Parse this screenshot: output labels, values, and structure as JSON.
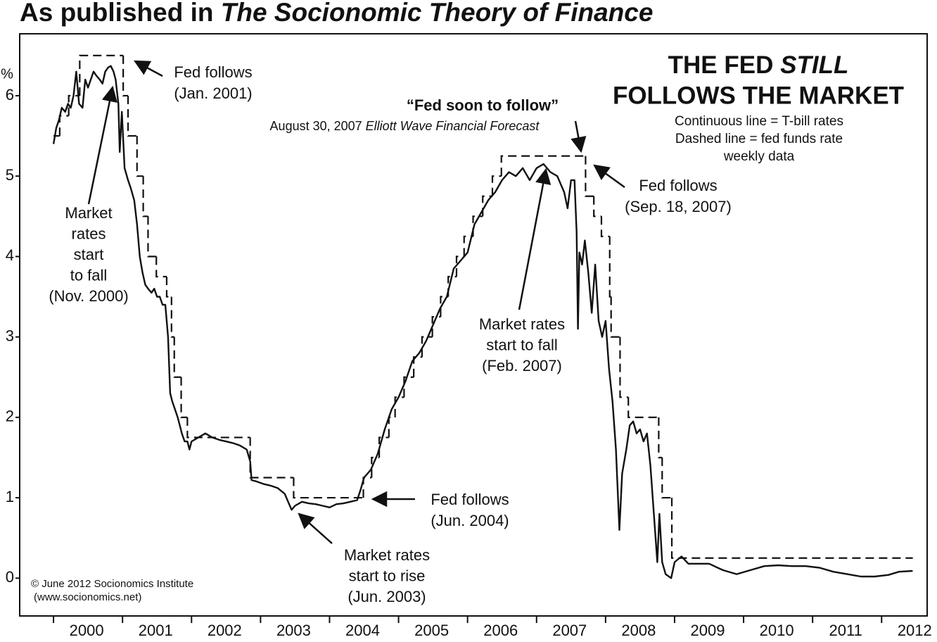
{
  "chart_data": {
    "type": "line",
    "title": [
      "As published in",
      "The Socionomic Theory of Finance"
    ],
    "heading": [
      "THE FED",
      "STILL",
      "FOLLOWS THE MARKET"
    ],
    "notes": [
      "Continuous line = T-bill rates",
      "Dashed line = fed funds rate",
      "weekly data"
    ],
    "y_label": "%",
    "xlim": [
      1999.51,
      2012.66
    ],
    "ylim": [
      -0.47,
      6.77
    ],
    "yticks": [
      0,
      1,
      2,
      3,
      4,
      5,
      6
    ],
    "xticks": [
      2000,
      2001,
      2002,
      2003,
      2004,
      2005,
      2006,
      2007,
      2008,
      2009,
      2010,
      2011,
      2012
    ],
    "series": [
      {
        "style": "solid",
        "color": "#111111",
        "x": [
          2000.0,
          2000.04,
          2000.08,
          2000.12,
          2000.17,
          2000.21,
          2000.25,
          2000.29,
          2000.33,
          2000.37,
          2000.42,
          2000.46,
          2000.5,
          2000.54,
          2000.58,
          2000.62,
          2000.67,
          2000.71,
          2000.75,
          2000.79,
          2000.83,
          2000.87,
          2000.9,
          2000.94,
          2000.96,
          2000.99,
          2001.03,
          2001.08,
          2001.12,
          2001.17,
          2001.21,
          2001.25,
          2001.29,
          2001.33,
          2001.37,
          2001.42,
          2001.46,
          2001.5,
          2001.54,
          2001.58,
          2001.62,
          2001.66,
          2001.69,
          2001.72,
          2001.76,
          2001.8,
          2001.83,
          2001.86,
          2001.9,
          2001.94,
          2001.97,
          2002.0,
          2002.1,
          2002.2,
          2002.3,
          2002.4,
          2002.5,
          2002.6,
          2002.7,
          2002.8,
          2002.85,
          2002.87,
          2002.95,
          2003.05,
          2003.15,
          2003.25,
          2003.35,
          2003.4,
          2003.45,
          2003.5,
          2003.6,
          2003.7,
          2003.8,
          2003.9,
          2004.0,
          2004.1,
          2004.2,
          2004.3,
          2004.4,
          2004.45,
          2004.5,
          2004.6,
          2004.7,
          2004.8,
          2004.9,
          2005.0,
          2005.1,
          2005.2,
          2005.3,
          2005.4,
          2005.5,
          2005.6,
          2005.7,
          2005.8,
          2005.9,
          2006.0,
          2006.1,
          2006.2,
          2006.3,
          2006.4,
          2006.5,
          2006.6,
          2006.7,
          2006.8,
          2006.9,
          2007.0,
          2007.1,
          2007.2,
          2007.3,
          2007.4,
          2007.45,
          2007.5,
          2007.55,
          2007.58,
          2007.6,
          2007.62,
          2007.66,
          2007.7,
          2007.75,
          2007.8,
          2007.85,
          2007.9,
          2007.95,
          2008.0,
          2008.05,
          2008.1,
          2008.15,
          2008.2,
          2008.24,
          2008.3,
          2008.35,
          2008.4,
          2008.45,
          2008.5,
          2008.55,
          2008.6,
          2008.65,
          2008.7,
          2008.75,
          2008.78,
          2008.82,
          2008.87,
          2008.95,
          2009.0,
          2009.1,
          2009.2,
          2009.3,
          2009.5,
          2009.7,
          2009.9,
          2010.1,
          2010.3,
          2010.5,
          2010.7,
          2010.9,
          2011.1,
          2011.3,
          2011.5,
          2011.7,
          2011.9,
          2012.1,
          2012.25,
          2012.45
        ],
        "values": [
          5.4,
          5.6,
          5.7,
          5.85,
          5.8,
          5.9,
          5.85,
          6.0,
          6.3,
          5.9,
          5.85,
          6.2,
          6.1,
          6.2,
          6.3,
          6.25,
          6.2,
          6.15,
          6.3,
          6.35,
          6.37,
          6.3,
          6.2,
          5.9,
          5.3,
          5.8,
          5.1,
          4.95,
          4.85,
          4.7,
          4.4,
          4.0,
          3.8,
          3.65,
          3.6,
          3.55,
          3.6,
          3.5,
          3.5,
          3.4,
          3.4,
          3.0,
          2.3,
          2.2,
          2.1,
          2.0,
          1.9,
          1.8,
          1.7,
          1.7,
          1.6,
          1.7,
          1.75,
          1.8,
          1.75,
          1.72,
          1.7,
          1.68,
          1.65,
          1.6,
          1.45,
          1.22,
          1.2,
          1.17,
          1.15,
          1.12,
          1.05,
          0.95,
          0.85,
          0.9,
          0.95,
          0.93,
          0.92,
          0.9,
          0.88,
          0.92,
          0.93,
          0.95,
          0.97,
          1.1,
          1.25,
          1.35,
          1.55,
          1.85,
          2.1,
          2.25,
          2.45,
          2.7,
          2.8,
          2.95,
          3.15,
          3.35,
          3.5,
          3.85,
          3.95,
          4.05,
          4.4,
          4.55,
          4.7,
          4.8,
          4.95,
          5.05,
          5.0,
          5.1,
          4.95,
          5.1,
          5.15,
          5.05,
          5.0,
          4.8,
          4.6,
          4.95,
          4.95,
          4.3,
          3.1,
          4.05,
          3.9,
          4.2,
          3.8,
          3.3,
          3.9,
          3.2,
          3.0,
          3.2,
          2.6,
          2.2,
          1.6,
          0.6,
          1.3,
          1.6,
          1.9,
          1.95,
          1.8,
          1.85,
          1.7,
          1.8,
          1.4,
          0.8,
          0.2,
          0.8,
          0.2,
          0.05,
          0.0,
          0.2,
          0.27,
          0.18,
          0.18,
          0.18,
          0.1,
          0.05,
          0.1,
          0.15,
          0.16,
          0.15,
          0.15,
          0.13,
          0.08,
          0.05,
          0.02,
          0.02,
          0.04,
          0.08,
          0.09
        ]
      },
      {
        "style": "dashed",
        "drawstyle": "steps-post",
        "color": "#111111",
        "x": [
          2000.0,
          2000.09,
          2000.22,
          2000.38,
          2001.01,
          2001.08,
          2001.21,
          2001.3,
          2001.37,
          2001.49,
          2001.64,
          2001.71,
          2001.75,
          2001.85,
          2001.94,
          2002.85,
          2003.48,
          2004.49,
          2004.61,
          2004.72,
          2004.86,
          2004.95,
          2005.08,
          2005.22,
          2005.34,
          2005.49,
          2005.61,
          2005.72,
          2005.84,
          2005.95,
          2006.08,
          2006.22,
          2006.36,
          2006.49,
          2007.71,
          2007.83,
          2007.94,
          2008.06,
          2008.08,
          2008.21,
          2008.33,
          2008.77,
          2008.82,
          2008.96,
          2012.45
        ],
        "values": [
          5.5,
          5.75,
          6.0,
          6.5,
          6.0,
          5.5,
          5.0,
          4.5,
          4.0,
          3.75,
          3.5,
          3.0,
          2.5,
          2.0,
          1.75,
          1.25,
          1.0,
          1.25,
          1.5,
          1.75,
          2.0,
          2.25,
          2.5,
          2.75,
          3.0,
          3.25,
          3.5,
          3.75,
          4.0,
          4.25,
          4.5,
          4.75,
          5.0,
          5.25,
          4.75,
          4.5,
          4.25,
          3.5,
          3.0,
          2.25,
          2.0,
          1.5,
          1.0,
          0.25,
          0.25
        ]
      }
    ],
    "annotations": [
      {
        "lines": [
          "Fed follows",
          "(Jan. 2001)"
        ]
      },
      {
        "lines": [
          "Market",
          "rates",
          "start",
          "to fall",
          "(Nov. 2000)"
        ]
      },
      {
        "lines": [
          "“Fed soon to follow”"
        ]
      },
      {
        "lines": [
          "August 30, 2007",
          "Elliott Wave Financial Forecast"
        ]
      },
      {
        "lines": [
          "Fed follows",
          "(Sep. 18, 2007)"
        ]
      },
      {
        "lines": [
          "Market rates",
          "start to fall",
          "(Feb. 2007)"
        ]
      },
      {
        "lines": [
          "Fed follows",
          "(Jun. 2004)"
        ]
      },
      {
        "lines": [
          "Market rates",
          "start to rise",
          "(Jun. 2003)"
        ]
      }
    ],
    "credits": [
      "© June 2012 Socionomics Institute",
      "(www.socionomics.net)"
    ]
  }
}
